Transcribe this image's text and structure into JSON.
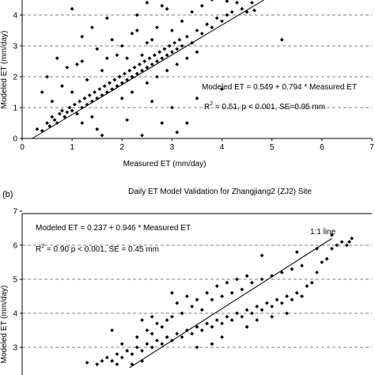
{
  "chart_data": [
    {
      "type": "scatter",
      "title": "",
      "xlabel": "Measured ET (mm/day)",
      "ylabel": "Modeled ET (mm/day)",
      "xlim": [
        0,
        7
      ],
      "ylim": [
        0,
        4.5
      ],
      "xticks": [
        "0",
        "1",
        "2",
        "3",
        "4",
        "5",
        "6",
        "7"
      ],
      "yticks": [
        "0",
        "1",
        "2",
        "3",
        "4"
      ],
      "grid": "horizontal dashed",
      "annotations": {
        "equation": "Modeled ET = 0.549 + 0.794 * Measured ET",
        "r2_prefix": "R",
        "r2_sup": "2",
        "r2_rest": " = 0.51, p < 0.001, SE=0.95 mm"
      },
      "fit_line": {
        "from": [
          0.2,
          0.0
        ],
        "to": [
          4.85,
          4.5
        ]
      },
      "points": [
        [
          0.3,
          0.3
        ],
        [
          0.4,
          0.25
        ],
        [
          0.5,
          0.5
        ],
        [
          0.55,
          0.4
        ],
        [
          0.6,
          0.7
        ],
        [
          0.65,
          0.6
        ],
        [
          0.7,
          0.5
        ],
        [
          0.75,
          0.8
        ],
        [
          0.8,
          0.9
        ],
        [
          0.85,
          0.7
        ],
        [
          0.9,
          0.85
        ],
        [
          0.95,
          1.0
        ],
        [
          1.0,
          0.9
        ],
        [
          1.05,
          1.1
        ],
        [
          1.1,
          0.8
        ],
        [
          1.15,
          1.2
        ],
        [
          1.2,
          1.0
        ],
        [
          1.25,
          1.3
        ],
        [
          1.3,
          1.1
        ],
        [
          1.35,
          1.4
        ],
        [
          1.4,
          1.2
        ],
        [
          1.45,
          1.5
        ],
        [
          1.5,
          1.3
        ],
        [
          1.55,
          1.6
        ],
        [
          1.6,
          1.4
        ],
        [
          1.65,
          1.7
        ],
        [
          1.7,
          1.5
        ],
        [
          1.75,
          1.8
        ],
        [
          1.8,
          1.6
        ],
        [
          1.85,
          1.9
        ],
        [
          1.9,
          1.7
        ],
        [
          1.95,
          2.0
        ],
        [
          2.0,
          1.8
        ],
        [
          2.05,
          2.1
        ],
        [
          2.1,
          1.9
        ],
        [
          2.15,
          2.2
        ],
        [
          2.2,
          2.0
        ],
        [
          2.25,
          2.3
        ],
        [
          2.3,
          2.1
        ],
        [
          2.35,
          2.4
        ],
        [
          2.4,
          2.2
        ],
        [
          2.45,
          2.5
        ],
        [
          2.5,
          2.3
        ],
        [
          2.55,
          2.6
        ],
        [
          2.6,
          2.4
        ],
        [
          2.65,
          2.7
        ],
        [
          2.7,
          2.5
        ],
        [
          2.75,
          2.8
        ],
        [
          2.8,
          2.6
        ],
        [
          2.85,
          2.9
        ],
        [
          2.9,
          2.7
        ],
        [
          2.95,
          3.0
        ],
        [
          3.0,
          2.8
        ],
        [
          3.05,
          3.1
        ],
        [
          3.1,
          2.9
        ],
        [
          3.15,
          3.2
        ],
        [
          3.2,
          3.0
        ],
        [
          3.3,
          3.3
        ],
        [
          3.4,
          3.1
        ],
        [
          3.5,
          3.5
        ],
        [
          3.6,
          3.4
        ],
        [
          3.7,
          3.7
        ],
        [
          3.8,
          3.6
        ],
        [
          3.9,
          3.9
        ],
        [
          4.0,
          3.8
        ],
        [
          4.1,
          4.0
        ],
        [
          4.2,
          4.1
        ],
        [
          4.3,
          4.4
        ],
        [
          4.4,
          4.2
        ],
        [
          4.5,
          4.1
        ],
        [
          4.6,
          4.4
        ],
        [
          4.65,
          4.15
        ],
        [
          5.2,
          3.2
        ],
        [
          0.5,
          2.0
        ],
        [
          0.7,
          2.6
        ],
        [
          0.9,
          2.3
        ],
        [
          1.0,
          1.5
        ],
        [
          1.1,
          2.4
        ],
        [
          1.2,
          2.5
        ],
        [
          1.3,
          1.9
        ],
        [
          1.5,
          2.9
        ],
        [
          1.6,
          2.2
        ],
        [
          1.7,
          2.6
        ],
        [
          1.8,
          3.2
        ],
        [
          1.9,
          2.7
        ],
        [
          2.0,
          3.0
        ],
        [
          2.1,
          2.6
        ],
        [
          2.2,
          3.4
        ],
        [
          2.3,
          3.5
        ],
        [
          2.4,
          2.7
        ],
        [
          2.5,
          3.1
        ],
        [
          2.6,
          3.2
        ],
        [
          2.7,
          3.6
        ],
        [
          2.9,
          4.2
        ],
        [
          3.0,
          3.5
        ],
        [
          3.2,
          3.8
        ],
        [
          3.4,
          4.1
        ],
        [
          3.6,
          4.3
        ],
        [
          1.5,
          0.3
        ],
        [
          1.6,
          0.1
        ],
        [
          2.1,
          0.6
        ],
        [
          2.4,
          0.1
        ],
        [
          2.6,
          1.2
        ],
        [
          2.8,
          0.5
        ],
        [
          3.0,
          1.0
        ],
        [
          3.1,
          0.2
        ],
        [
          3.3,
          0.5
        ],
        [
          3.5,
          1.3
        ],
        [
          4.0,
          1.6
        ],
        [
          0.4,
          1.5
        ],
        [
          0.6,
          1.2
        ],
        [
          0.8,
          1.7
        ],
        [
          1.2,
          0.5
        ],
        [
          1.4,
          0.7
        ],
        [
          2.0,
          1.3
        ],
        [
          2.2,
          1.5
        ],
        [
          2.5,
          1.8
        ],
        [
          2.7,
          2.0
        ],
        [
          2.9,
          2.2
        ],
        [
          3.1,
          2.4
        ],
        [
          3.3,
          2.6
        ],
        [
          3.5,
          2.8
        ],
        [
          1.0,
          4.2
        ],
        [
          1.2,
          3.3
        ],
        [
          1.4,
          3.6
        ],
        [
          1.7,
          3.9
        ],
        [
          2.3,
          4.0
        ],
        [
          2.5,
          4.4
        ],
        [
          2.8,
          4.3
        ],
        [
          3.8,
          4.5
        ],
        [
          4.1,
          4.45
        ]
      ]
    },
    {
      "type": "scatter",
      "title": "Daily ET Model Validation for Zhangjiang2 (ZJ2) Site",
      "xlabel": "",
      "ylabel": "Modeled ET (mm/day)",
      "xlim": [
        0,
        7
      ],
      "ylim": [
        2.4,
        7
      ],
      "yticks": [
        "3",
        "4",
        "5",
        "6",
        "7"
      ],
      "grid": "horizontal dashed",
      "annotations": {
        "equation": "Modeled ET = 0.237 + 0.946 * Measured ET",
        "r2_prefix": "R",
        "r2_sup": "2",
        "r2_rest": " = 0.90 p < 0.001, SE = 0.45 mm",
        "line_label": "1:1 line"
      },
      "fit_line": {
        "from": [
          2.5,
          2.5
        ],
        "to": [
          6.2,
          6.2
        ]
      },
      "points": [
        [
          1.3,
          2.55
        ],
        [
          1.5,
          2.5
        ],
        [
          1.6,
          2.6
        ],
        [
          1.7,
          2.7
        ],
        [
          1.8,
          2.6
        ],
        [
          1.9,
          2.8
        ],
        [
          2.0,
          2.7
        ],
        [
          2.1,
          2.9
        ],
        [
          2.2,
          2.8
        ],
        [
          2.3,
          3.0
        ],
        [
          2.4,
          2.9
        ],
        [
          2.5,
          3.1
        ],
        [
          2.6,
          3.0
        ],
        [
          2.7,
          3.2
        ],
        [
          2.8,
          3.1
        ],
        [
          2.9,
          3.3
        ],
        [
          3.0,
          3.2
        ],
        [
          3.1,
          3.4
        ],
        [
          3.2,
          3.3
        ],
        [
          3.3,
          3.5
        ],
        [
          3.4,
          3.4
        ],
        [
          3.5,
          3.6
        ],
        [
          3.6,
          3.5
        ],
        [
          3.7,
          3.7
        ],
        [
          3.8,
          3.6
        ],
        [
          3.9,
          3.8
        ],
        [
          4.0,
          3.7
        ],
        [
          4.1,
          3.9
        ],
        [
          4.2,
          3.8
        ],
        [
          4.3,
          4.0
        ],
        [
          4.4,
          3.9
        ],
        [
          4.5,
          4.1
        ],
        [
          4.6,
          4.0
        ],
        [
          4.7,
          4.2
        ],
        [
          4.8,
          4.1
        ],
        [
          4.9,
          4.3
        ],
        [
          5.0,
          4.2
        ],
        [
          5.1,
          4.4
        ],
        [
          5.2,
          4.3
        ],
        [
          5.3,
          4.5
        ],
        [
          5.4,
          4.4
        ],
        [
          5.5,
          4.6
        ],
        [
          5.6,
          4.5
        ],
        [
          5.7,
          4.8
        ],
        [
          5.8,
          4.9
        ],
        [
          5.9,
          5.2
        ],
        [
          6.0,
          5.5
        ],
        [
          6.1,
          5.6
        ],
        [
          6.2,
          5.9
        ],
        [
          6.3,
          6.0
        ],
        [
          6.4,
          6.1
        ],
        [
          6.5,
          6.0
        ],
        [
          6.55,
          6.1
        ],
        [
          3.0,
          3.9
        ],
        [
          3.2,
          4.0
        ],
        [
          3.4,
          4.2
        ],
        [
          3.6,
          4.1
        ],
        [
          3.8,
          4.4
        ],
        [
          4.0,
          4.5
        ],
        [
          4.2,
          4.6
        ],
        [
          4.4,
          4.7
        ],
        [
          4.6,
          4.9
        ],
        [
          4.8,
          5.0
        ],
        [
          5.0,
          5.1
        ],
        [
          5.2,
          5.2
        ],
        [
          3.1,
          4.3
        ],
        [
          3.3,
          4.5
        ],
        [
          3.5,
          4.4
        ],
        [
          3.7,
          4.6
        ],
        [
          3.9,
          4.8
        ],
        [
          4.1,
          4.9
        ],
        [
          4.3,
          5.0
        ],
        [
          4.5,
          5.1
        ],
        [
          5.4,
          5.3
        ],
        [
          5.6,
          5.4
        ],
        [
          2.6,
          3.4
        ],
        [
          2.8,
          3.6
        ],
        [
          2.7,
          3.7
        ],
        [
          2.9,
          3.8
        ],
        [
          1.9,
          2.5
        ],
        [
          2.2,
          2.5
        ],
        [
          2.4,
          2.6
        ],
        [
          2.0,
          3.1
        ],
        [
          2.3,
          3.3
        ],
        [
          2.5,
          3.5
        ],
        [
          3.5,
          3.0
        ],
        [
          3.8,
          3.1
        ],
        [
          4.0,
          3.3
        ],
        [
          4.5,
          3.6
        ],
        [
          4.7,
          3.8
        ],
        [
          5.0,
          3.9
        ],
        [
          5.3,
          4.0
        ],
        [
          1.8,
          3.5
        ],
        [
          4.8,
          5.7
        ],
        [
          5.5,
          5.8
        ],
        [
          5.9,
          5.9
        ],
        [
          6.2,
          6.3
        ],
        [
          6.6,
          6.2
        ],
        [
          2.6,
          3.9
        ],
        [
          2.4,
          3.8
        ],
        [
          3.0,
          4.6
        ]
      ]
    }
  ],
  "panel_label_b": "(b)"
}
